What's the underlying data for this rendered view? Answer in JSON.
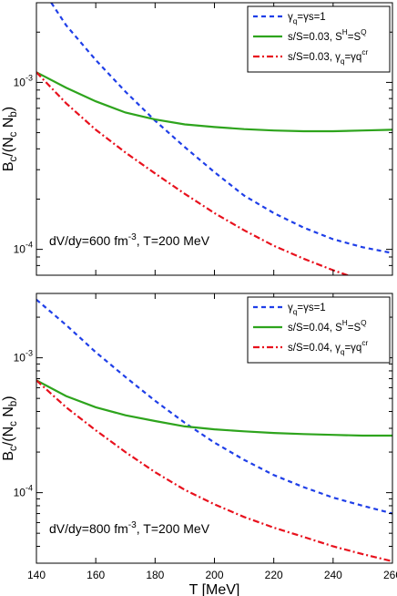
{
  "chart_data": [
    {
      "type": "line",
      "panel": "top",
      "xlabel": "",
      "ylabel": "B_c/(N_c N_b)",
      "xlim": [
        140,
        260
      ],
      "ylim": [
        7e-05,
        0.003
      ],
      "yscale": "log",
      "x_ticks": [
        140,
        160,
        180,
        200,
        220,
        240,
        260
      ],
      "x_tick_labels": [
        "",
        "",
        "",
        "",
        "",
        "",
        ""
      ],
      "y_ticks": [
        0.0001,
        0.001
      ],
      "grid": false,
      "legend_position": "top-right",
      "annotation": "dV/dy=600 fm^-3, T=200 MeV",
      "series": [
        {
          "name": "γq=γs=1",
          "color": "#1f3fe8",
          "style": "dashed",
          "x": [
            145,
            150,
            160,
            170,
            180,
            190,
            200,
            210,
            220,
            230,
            240,
            250,
            260
          ],
          "y": [
            0.003,
            0.0022,
            0.00136,
            0.00088,
            0.00059,
            0.00041,
            0.00029,
            0.00021,
            0.000165,
            0.000135,
            0.000115,
            0.000103,
            9.5e-05
          ]
        },
        {
          "name": "s/S=0.03, S^H=S^Q",
          "color": "#2ea41d",
          "style": "solid",
          "x": [
            140,
            150,
            160,
            170,
            180,
            190,
            200,
            210,
            220,
            230,
            240,
            250,
            260
          ],
          "y": [
            0.00115,
            0.00093,
            0.00077,
            0.00066,
            0.0006,
            0.00056,
            0.00054,
            0.000525,
            0.000515,
            0.00051,
            0.00051,
            0.000515,
            0.00052
          ]
        },
        {
          "name": "s/S=0.03, γq=γq^cr",
          "color": "#e8111d",
          "style": "dashdot",
          "x": [
            140,
            150,
            160,
            170,
            180,
            190,
            200,
            210,
            220,
            230,
            240,
            250,
            260
          ],
          "y": [
            0.00115,
            0.00075,
            0.00052,
            0.00038,
            0.000285,
            0.000215,
            0.000165,
            0.00013,
            0.000105,
            8.8e-05,
            7.5e-05,
            6.5e-05,
            5.9e-05
          ]
        }
      ]
    },
    {
      "type": "line",
      "panel": "bottom",
      "xlabel": "T [MeV]",
      "ylabel": "B_c/(N_c N_b)",
      "xlim": [
        140,
        260
      ],
      "ylim": [
        3e-05,
        0.003
      ],
      "yscale": "log",
      "x_ticks": [
        140,
        160,
        180,
        200,
        220,
        240,
        260
      ],
      "x_tick_labels": [
        "140",
        "160",
        "180",
        "200",
        "220",
        "240",
        "260"
      ],
      "y_ticks": [
        0.0001,
        0.001
      ],
      "grid": false,
      "legend_position": "top-right",
      "annotation": "dV/dy=800 fm^-3, T=200 MeV",
      "series": [
        {
          "name": "γq=γs=1",
          "color": "#1f3fe8",
          "style": "dashed",
          "x": [
            140,
            150,
            160,
            170,
            180,
            190,
            200,
            210,
            220,
            230,
            240,
            250,
            260
          ],
          "y": [
            0.0027,
            0.00175,
            0.0011,
            0.00072,
            0.00048,
            0.00033,
            0.000235,
            0.000175,
            0.000135,
            0.00011,
            9.2e-05,
            8e-05,
            7e-05
          ]
        },
        {
          "name": "s/S=0.04, S^H=S^Q",
          "color": "#2ea41d",
          "style": "solid",
          "x": [
            140,
            150,
            160,
            170,
            180,
            190,
            200,
            210,
            220,
            230,
            240,
            250,
            260
          ],
          "y": [
            0.00068,
            0.00052,
            0.00043,
            0.000375,
            0.00034,
            0.00031,
            0.000295,
            0.000285,
            0.000277,
            0.000272,
            0.000268,
            0.000265,
            0.000265
          ]
        },
        {
          "name": "s/S=0.04, γq=γq^cr",
          "color": "#e8111d",
          "style": "dashdot",
          "x": [
            140,
            150,
            160,
            170,
            180,
            190,
            200,
            210,
            220,
            230,
            240,
            250,
            260
          ],
          "y": [
            0.00068,
            0.00043,
            0.00029,
            0.0002,
            0.000142,
            0.000105,
            8.2e-05,
            6.6e-05,
            5.5e-05,
            4.7e-05,
            4e-05,
            3.5e-05,
            3.1e-05
          ]
        }
      ]
    }
  ]
}
